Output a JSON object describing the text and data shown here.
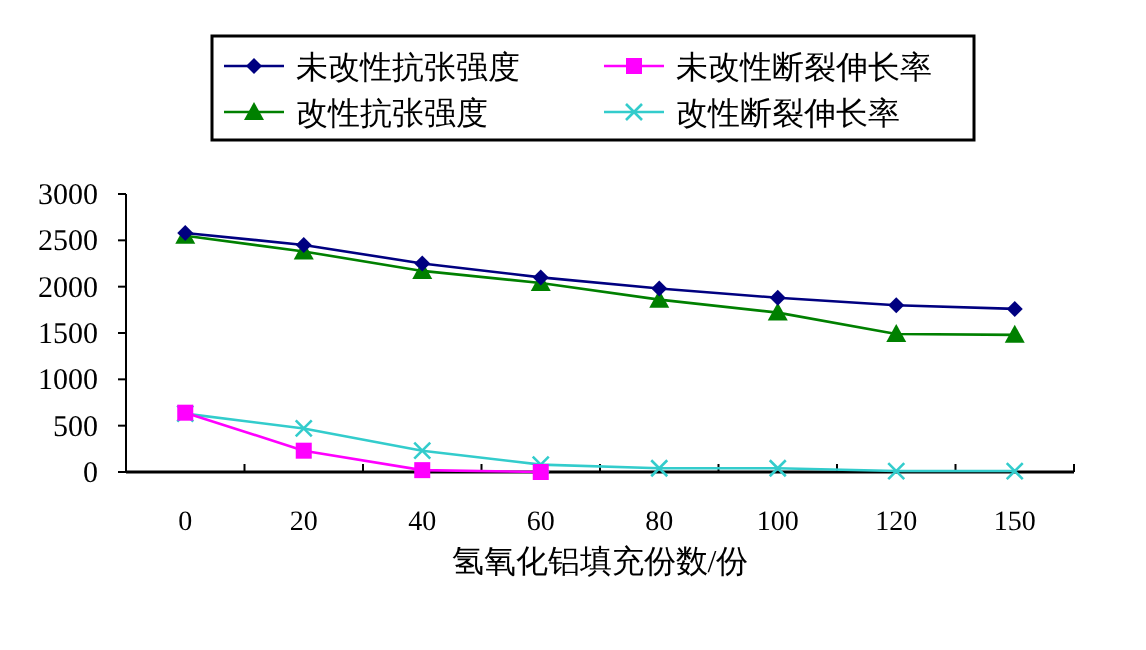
{
  "chart_data": {
    "type": "line",
    "xlabel": "氢氧化铝填充份数/份",
    "categories": [
      "0",
      "20",
      "40",
      "60",
      "80",
      "100",
      "120",
      "150"
    ],
    "ylim": [
      0,
      3000
    ],
    "yticks": [
      0,
      500,
      1000,
      1500,
      2000,
      2500,
      3000
    ],
    "grid": false,
    "legend": "top",
    "series": [
      {
        "name": "未改性抗张强度",
        "color": "#000080",
        "marker": "diamond",
        "values": [
          2580,
          2450,
          2250,
          2100,
          1980,
          1880,
          1800,
          1760
        ]
      },
      {
        "name": "未改性断裂伸长率",
        "color": "#ff00ff",
        "marker": "square",
        "values": [
          640,
          230,
          20,
          0,
          null,
          null,
          null,
          null
        ]
      },
      {
        "name": "改性抗张强度",
        "color": "#008000",
        "marker": "triangle",
        "values": [
          2550,
          2380,
          2170,
          2040,
          1860,
          1720,
          1490,
          1480
        ]
      },
      {
        "name": "改性断裂伸长率",
        "color": "#33cccc",
        "marker": "cross",
        "values": [
          630,
          470,
          230,
          80,
          40,
          40,
          10,
          10
        ]
      }
    ]
  }
}
